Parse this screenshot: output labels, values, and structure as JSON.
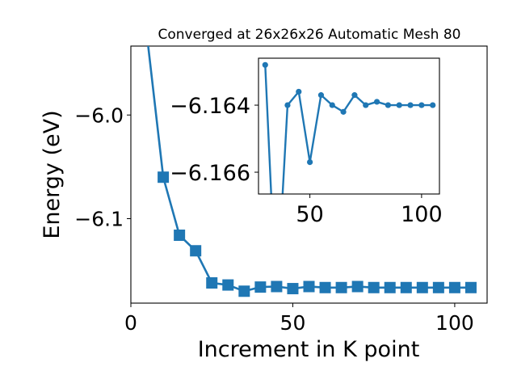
{
  "chart_data": {
    "type": "line",
    "title": "Converged at 26x26x26 Automatic Mesh 80",
    "xlabel": "Increment in K point",
    "ylabel": "Energy (eV)",
    "xlim": [
      0,
      110
    ],
    "ylim": [
      -6.1815,
      -5.9335
    ],
    "xticks": [
      0,
      50,
      100
    ],
    "xtick_labels": [
      "0",
      "50",
      "100"
    ],
    "yticks": [
      -6.1,
      -6.0
    ],
    "ytick_labels": [
      "−6.1",
      "−6.0"
    ],
    "grid": false,
    "series_color": "#1f77b4",
    "main_series": {
      "marker": "square",
      "x": [
        5,
        10,
        15,
        20,
        25,
        30,
        35,
        40,
        45,
        50,
        55,
        60,
        65,
        70,
        75,
        80,
        85,
        90,
        95,
        100,
        105
      ],
      "y": [
        -5.924,
        -6.06,
        -6.116,
        -6.131,
        -6.162,
        -6.164,
        -6.17,
        -6.166,
        -6.1655,
        -6.1675,
        -6.1655,
        -6.1665,
        -6.1665,
        -6.1655,
        -6.1665,
        -6.1665,
        -6.1665,
        -6.1665,
        -6.1665,
        -6.1665,
        -6.1665
      ]
    },
    "inset": {
      "marker": "circle",
      "xlim": [
        27,
        108
      ],
      "ylim": [
        -6.1626,
        -6.16665
      ],
      "xticks": [
        50,
        100
      ],
      "xtick_labels": [
        "50",
        "100"
      ],
      "yticks": [
        -6.166,
        -6.164
      ],
      "ytick_labels": [
        "−6.166",
        "−6.164"
      ],
      "x": [
        30,
        35,
        40,
        45,
        50,
        55,
        60,
        65,
        70,
        75,
        80,
        85,
        90,
        95,
        100,
        105
      ],
      "y": [
        -6.1628,
        -6.17,
        -6.164,
        -6.1636,
        -6.1657,
        -6.1637,
        -6.164,
        -6.1642,
        -6.1637,
        -6.164,
        -6.1639,
        -6.164,
        -6.164,
        -6.164,
        -6.164,
        -6.164
      ]
    }
  }
}
